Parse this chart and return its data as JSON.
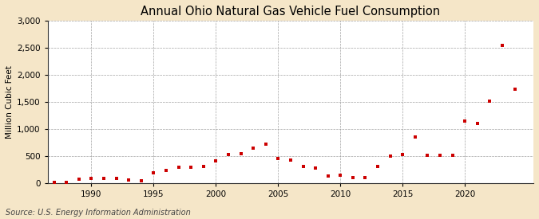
{
  "title": "Annual Ohio Natural Gas Vehicle Fuel Consumption",
  "ylabel": "Million Cubic Feet",
  "source": "Source: U.S. Energy Information Administration",
  "background_color": "#f5e6c8",
  "plot_background_color": "#ffffff",
  "marker_color": "#cc0000",
  "grid_color": "#999999",
  "spine_color": "#333333",
  "years": [
    1987,
    1988,
    1989,
    1990,
    1991,
    1992,
    1993,
    1994,
    1995,
    1996,
    1997,
    1998,
    1999,
    2000,
    2001,
    2002,
    2003,
    2004,
    2005,
    2006,
    2007,
    2008,
    2009,
    2010,
    2011,
    2012,
    2013,
    2014,
    2015,
    2016,
    2017,
    2018,
    2019,
    2020,
    2021,
    2022,
    2023,
    2024
  ],
  "values": [
    5,
    15,
    70,
    85,
    90,
    80,
    55,
    35,
    185,
    230,
    290,
    295,
    300,
    410,
    530,
    545,
    650,
    720,
    450,
    425,
    310,
    280,
    130,
    150,
    100,
    95,
    305,
    500,
    520,
    850,
    510,
    510,
    510,
    1140,
    1100,
    1510,
    2540,
    1740
  ],
  "xlim": [
    1986.5,
    2025.5
  ],
  "ylim": [
    0,
    3000
  ],
  "yticks": [
    0,
    500,
    1000,
    1500,
    2000,
    2500,
    3000
  ],
  "xticks": [
    1990,
    1995,
    2000,
    2005,
    2010,
    2015,
    2020
  ],
  "title_fontsize": 10.5,
  "label_fontsize": 7.5,
  "tick_fontsize": 7.5,
  "source_fontsize": 7,
  "marker_size": 9
}
